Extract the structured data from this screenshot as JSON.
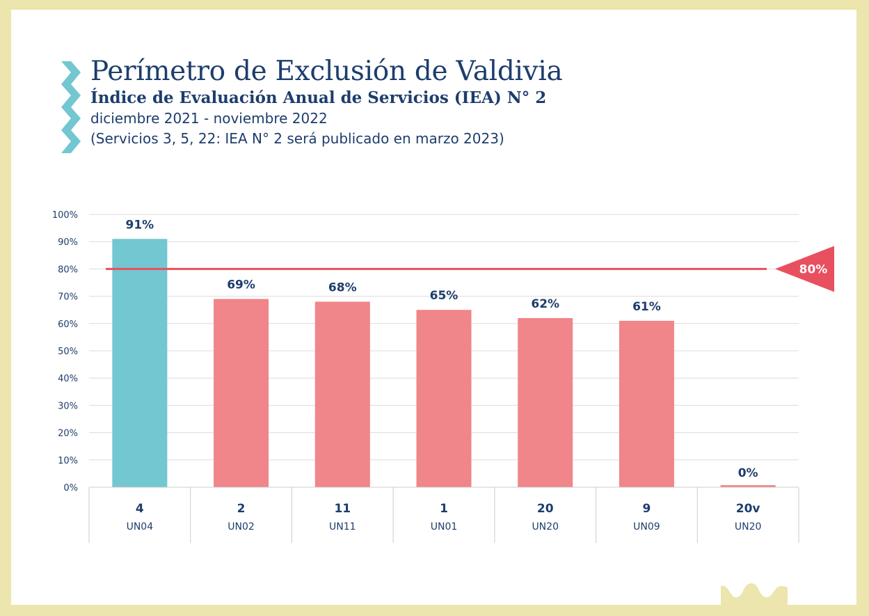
{
  "header": {
    "title": "Perímetro de Exclusión de Valdivia",
    "subtitle": "Índice de Evaluación Anual de Servicios (IEA) N° 2",
    "period": "diciembre 2021 - noviembre 2022",
    "note": "(Servicios 3, 5, 22: IEA N° 2 será publicado en marzo 2023)"
  },
  "colors": {
    "teal": "#72c7d1",
    "salmon": "#f0858a",
    "threshold": "#e8505f",
    "navy": "#1d3d6c",
    "frame": "#ece5ad",
    "grid": "#dcdcdc"
  },
  "chart_data": {
    "type": "bar",
    "title": "Índice de Evaluación Anual de Servicios (IEA) N° 2",
    "categories": [
      "4",
      "2",
      "11",
      "1",
      "20",
      "9",
      "20v"
    ],
    "sublabels": [
      "UN04",
      "UN02",
      "UN11",
      "UN01",
      "UN20",
      "UN09",
      "UN20"
    ],
    "values": [
      91,
      69,
      68,
      65,
      62,
      61,
      0
    ],
    "value_labels": [
      "91%",
      "69%",
      "68%",
      "65%",
      "62%",
      "61%",
      "0%"
    ],
    "highlight_index": 0,
    "ylim": [
      0,
      100
    ],
    "yticks": [
      0,
      10,
      20,
      30,
      40,
      50,
      60,
      70,
      80,
      90,
      100
    ],
    "ytick_labels": [
      "0%",
      "10%",
      "20%",
      "30%",
      "40%",
      "50%",
      "60%",
      "70%",
      "80%",
      "90%",
      "100%"
    ],
    "threshold": {
      "value": 80,
      "label": "80%"
    },
    "xlabel": "",
    "ylabel": "",
    "grid": true
  }
}
